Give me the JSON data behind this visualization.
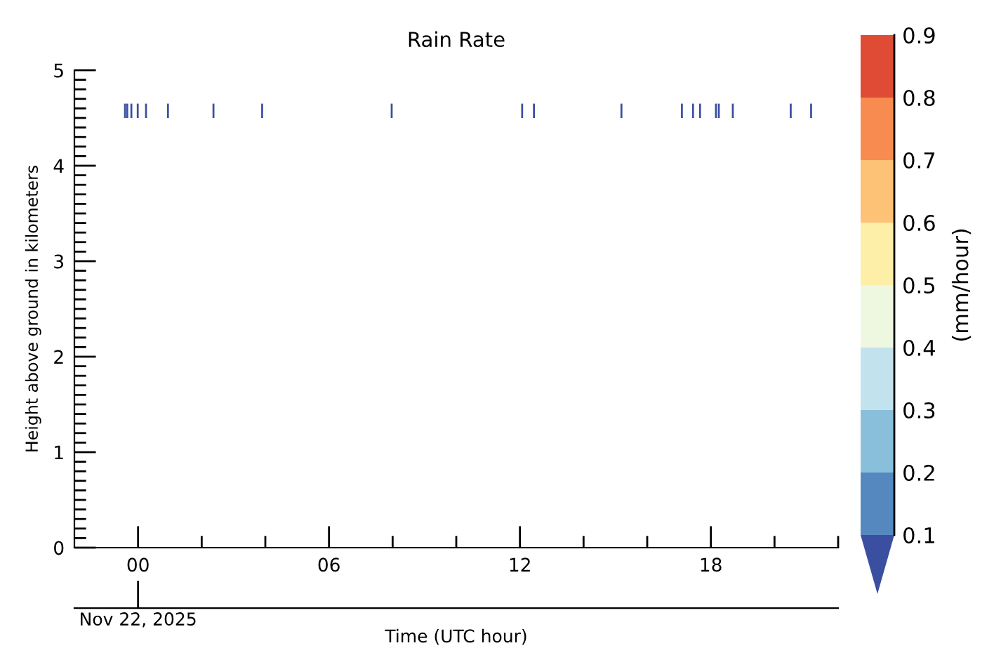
{
  "chart_data": {
    "type": "bar",
    "title": "Rain Rate",
    "xlabel": "Time (UTC hour)",
    "ylabel": "Height above ground in kilometers",
    "clabel": "(mm/hour)",
    "clim": [
      0.1,
      0.9
    ],
    "cticks": [
      0.1,
      0.2,
      0.3,
      0.4,
      0.5,
      0.6,
      0.7,
      0.8,
      0.9
    ],
    "x": [
      -0.41,
      -0.34,
      -0.21,
      -0.01,
      0.25,
      0.94,
      2.37,
      3.9,
      7.97,
      12.07,
      12.44,
      15.19,
      17.09,
      17.44,
      17.66,
      18.16,
      18.25,
      18.69,
      20.51,
      21.15
    ],
    "base": [
      4.5,
      4.5,
      4.5,
      4.5,
      4.5,
      4.5,
      4.5,
      4.5,
      4.5,
      4.5,
      4.5,
      4.5,
      4.5,
      4.5,
      4.5,
      4.5,
      4.5,
      4.5,
      4.5,
      4.5
    ],
    "values": [
      0.15,
      0.15,
      0.15,
      0.15,
      0.15,
      0.15,
      0.15,
      0.15,
      0.15,
      0.15,
      0.15,
      0.15,
      0.15,
      0.15,
      0.15,
      0.15,
      0.15,
      0.15,
      0.15,
      0.15
    ],
    "color": "#3a4fa0",
    "xlim": [
      -2,
      22
    ],
    "xticks": [
      {
        "value": 0,
        "label": "00"
      },
      {
        "value": 2,
        "label": null
      },
      {
        "value": 4,
        "label": null
      },
      {
        "value": 6,
        "label": "06"
      },
      {
        "value": 8,
        "label": null
      },
      {
        "value": 10,
        "label": null
      },
      {
        "value": 12,
        "label": "12"
      },
      {
        "value": 14,
        "label": null
      },
      {
        "value": 16,
        "label": null
      },
      {
        "value": 18,
        "label": "18"
      },
      {
        "value": 20,
        "label": null
      },
      {
        "value": 22,
        "label": null
      }
    ],
    "annotations": [
      {
        "text": "Nov 22, 2025",
        "x": 0
      }
    ],
    "ylim": [
      0,
      5
    ],
    "yticks": [
      0,
      {
        "value": 0.1,
        "label": null
      },
      {
        "value": 0.2,
        "label": null
      },
      {
        "value": 0.3,
        "label": null
      },
      {
        "value": 0.4,
        "label": null
      },
      {
        "value": 0.5,
        "label": null
      },
      {
        "value": 0.6,
        "label": null
      },
      {
        "value": 0.7,
        "label": null
      },
      {
        "value": 0.8,
        "label": null
      },
      {
        "value": 0.9,
        "label": null
      },
      1,
      {
        "value": 1.1,
        "label": null
      },
      {
        "value": 1.2,
        "label": null
      },
      {
        "value": 1.3,
        "label": null
      },
      {
        "value": 1.4,
        "label": null
      },
      {
        "value": 1.5,
        "label": null
      },
      {
        "value": 1.6,
        "label": null
      },
      {
        "value": 1.7,
        "label": null
      },
      {
        "value": 1.8,
        "label": null
      },
      {
        "value": 1.9,
        "label": null
      },
      2,
      {
        "value": 2.1,
        "label": null
      },
      {
        "value": 2.2,
        "label": null
      },
      {
        "value": 2.3,
        "label": null
      },
      {
        "value": 2.4,
        "label": null
      },
      {
        "value": 2.5,
        "label": null
      },
      {
        "value": 2.6,
        "label": null
      },
      {
        "value": 2.7,
        "label": null
      },
      {
        "value": 2.8,
        "label": null
      },
      {
        "value": 2.9,
        "label": null
      },
      3,
      {
        "value": 3.1,
        "label": null
      },
      {
        "value": 3.2,
        "label": null
      },
      {
        "value": 3.3,
        "label": null
      },
      {
        "value": 3.4,
        "label": null
      },
      {
        "value": 3.5,
        "label": null
      },
      {
        "value": 3.6,
        "label": null
      },
      {
        "value": 3.7,
        "label": null
      },
      {
        "value": 3.8,
        "label": null
      },
      {
        "value": 3.9,
        "label": null
      },
      4,
      {
        "value": 4.1,
        "label": null
      },
      {
        "value": 4.2,
        "label": null
      },
      {
        "value": 4.3,
        "label": null
      },
      {
        "value": 4.4,
        "label": null
      },
      {
        "value": 4.5,
        "label": null
      },
      {
        "value": 4.6,
        "label": null
      },
      {
        "value": 4.7,
        "label": null
      },
      {
        "value": 4.8,
        "label": null
      },
      {
        "value": 4.9,
        "label": null
      },
      5
    ]
  }
}
